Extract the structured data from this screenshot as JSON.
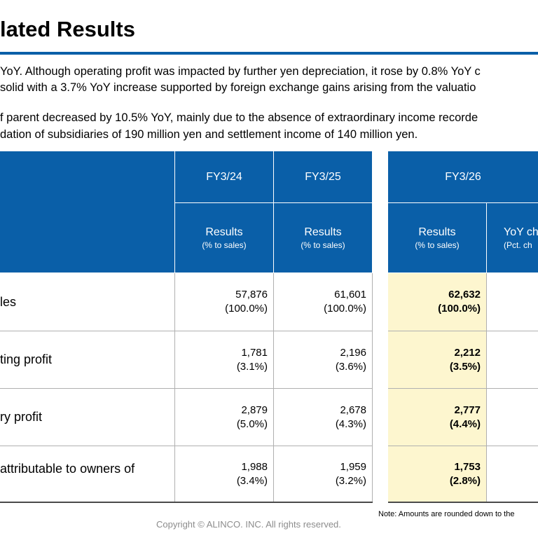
{
  "page": {
    "title": "lated Results",
    "paragraphs": [
      "YoY. Although operating profit was impacted by further yen depreciation, it rose by 0.8% YoY c",
      "solid with a 3.7% YoY increase supported by foreign exchange gains arising from the valuatio",
      "f parent decreased by 10.5% YoY, mainly due to the absence of extraordinary income recorde",
      "dation of subsidiaries of 190 million yen and settlement income of 140 million yen."
    ],
    "note": "Note: Amounts are rounded down to the",
    "copyright": "Copyright © ALINCO. INC. All rights reserved."
  },
  "table": {
    "periods": [
      "FY3/24",
      "FY3/25",
      "FY3/26"
    ],
    "results_label": "Results",
    "pct_sales_label": "(% to sales)",
    "yoy_label": "YoY ch",
    "pct_change_label": "(Pct. ch",
    "rows": [
      {
        "label": "les",
        "fy24": "57,876",
        "fy24_pct": "(100.0%)",
        "fy25": "61,601",
        "fy25_pct": "(100.0%)",
        "fy26": "62,632",
        "fy26_pct": "(100.0%)"
      },
      {
        "label": "ting profit",
        "fy24": "1,781",
        "fy24_pct": "(3.1%)",
        "fy25": "2,196",
        "fy25_pct": "(3.6%)",
        "fy26": "2,212",
        "fy26_pct": "(3.5%)"
      },
      {
        "label": "ry profit",
        "fy24": "2,879",
        "fy24_pct": "(5.0%)",
        "fy25": "2,678",
        "fy25_pct": "(4.3%)",
        "fy26": "2,777",
        "fy26_pct": "(4.4%)"
      },
      {
        "label": "attributable to owners of",
        "fy24": "1,988",
        "fy24_pct": "(3.4%)",
        "fy25": "1,959",
        "fy25_pct": "(3.2%)",
        "fy26": "1,753",
        "fy26_pct": "(2.8%)"
      }
    ]
  },
  "colors": {
    "accent": "#0a5fa8",
    "highlight": "#fdf6cf",
    "copyright": "#8c8c8c"
  }
}
